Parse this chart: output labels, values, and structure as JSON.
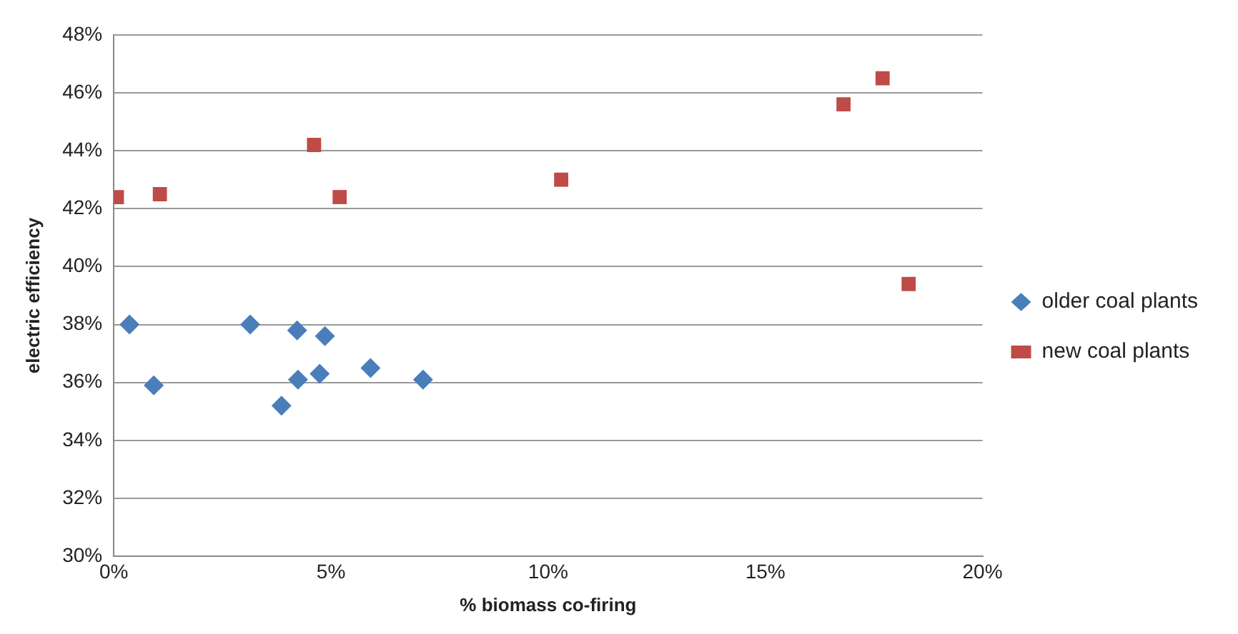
{
  "chart_data": {
    "type": "scatter",
    "xlabel": "% biomass co-firing",
    "ylabel": "electric efficiency",
    "xlim": [
      0,
      20
    ],
    "xticks": [
      {
        "value": 0,
        "label": "0%"
      },
      {
        "value": 5,
        "label": "5%"
      },
      {
        "value": 10,
        "label": "10%"
      },
      {
        "value": 15,
        "label": "15%"
      },
      {
        "value": 20,
        "label": "20%"
      }
    ],
    "ylim": [
      30,
      48
    ],
    "yticks": [
      {
        "value": 30,
        "label": "30%"
      },
      {
        "value": 32,
        "label": "32%"
      },
      {
        "value": 34,
        "label": "34%"
      },
      {
        "value": 36,
        "label": "36%"
      },
      {
        "value": 38,
        "label": "38%"
      },
      {
        "value": 40,
        "label": "40%"
      },
      {
        "value": 42,
        "label": "42%"
      },
      {
        "value": 44,
        "label": "44%"
      },
      {
        "value": 46,
        "label": "46%"
      },
      {
        "value": 48,
        "label": "48%"
      }
    ],
    "grid": "y",
    "legend": "right",
    "series": [
      {
        "name": "older coal plants",
        "color": "#4a7ebb",
        "marker": "diamond",
        "x": [
          0.36,
          0.92,
          3.14,
          4.22,
          4.86,
          4.24,
          4.74,
          3.86,
          5.91,
          7.12
        ],
        "values": [
          38.0,
          35.9,
          38.0,
          37.8,
          37.6,
          36.1,
          36.3,
          35.2,
          36.5,
          36.1
        ]
      },
      {
        "name": "new coal plants",
        "color": "#be4b48",
        "marker": "square",
        "x": [
          0.07,
          1.06,
          4.61,
          5.2,
          10.3,
          16.8,
          17.7,
          18.3
        ],
        "values": [
          42.4,
          42.5,
          44.2,
          42.4,
          43.0,
          45.6,
          46.5,
          39.4
        ]
      }
    ]
  }
}
